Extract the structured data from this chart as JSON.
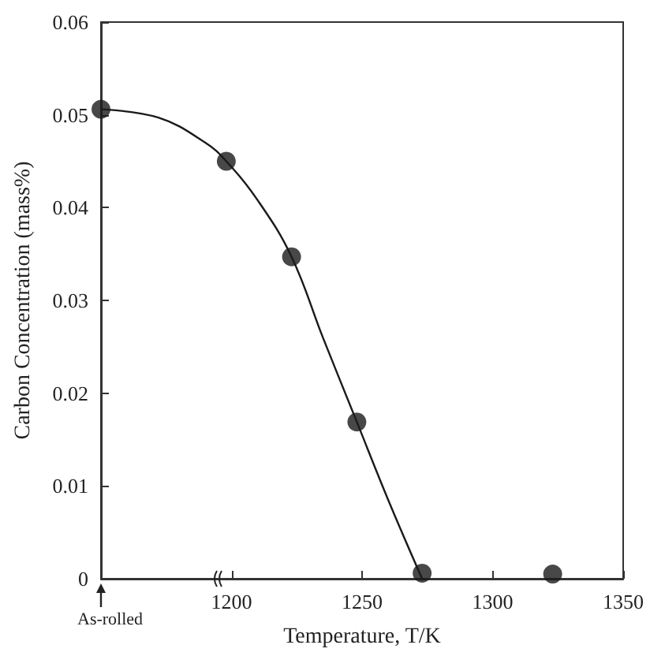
{
  "chart_data": {
    "type": "scatter",
    "xlabel": "Temperature, T/K",
    "ylabel": "Carbon Concentration (mass%)",
    "xlim": [
      1150,
      1350
    ],
    "xticks": [
      1200,
      1250,
      1300,
      1350
    ],
    "ylim": [
      0,
      0.06
    ],
    "yticks": [
      0,
      0.01,
      0.02,
      0.03,
      0.04,
      0.05,
      0.06
    ],
    "grid": false,
    "marker": "circle",
    "series": [
      {
        "color": "#1a1a1a",
        "x": [
          1150,
          1198,
          1223,
          1248,
          1273,
          1323
        ],
        "values": [
          0.0506,
          0.045,
          0.0347,
          0.0169,
          0.0006,
          0.0005
        ]
      },
      {
        "type": "line",
        "color": "#1a1a1a",
        "marker": "none",
        "line_style": "solid",
        "x": [
          1150,
          1172,
          1190,
          1198,
          1210,
          1223,
          1235,
          1248,
          1260,
          1273
        ],
        "values": [
          0.0506,
          0.0497,
          0.047,
          0.045,
          0.0408,
          0.0347,
          0.026,
          0.0169,
          0.0085,
          0
        ]
      }
    ],
    "annotations": [
      "As-rolled"
    ]
  }
}
